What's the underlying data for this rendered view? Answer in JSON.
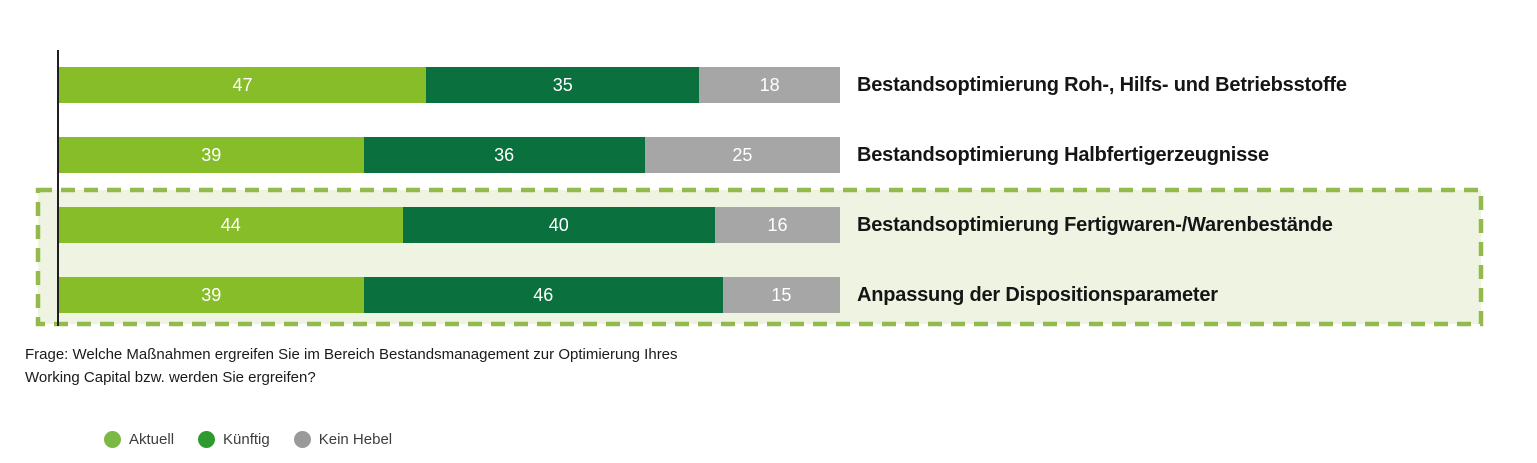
{
  "chart_data": {
    "type": "bar",
    "orientation": "horizontal-stacked",
    "title": "",
    "xlabel": "",
    "ylabel": "",
    "xlim": [
      0,
      100
    ],
    "grid": false,
    "categories": [
      "Bestandsoptimierung Roh-, Hilfs- und Betriebsstoffe",
      "Bestandsoptimierung Halbfertigerzeugnisse",
      "Bestandsoptimierung Fertigwaren-/Warenbestände",
      "Anpassung der Dispositionsparameter"
    ],
    "series": [
      {
        "key": "aktuell",
        "name": "Aktuell",
        "color": "#86bd28",
        "values": [
          47,
          39,
          44,
          39
        ]
      },
      {
        "key": "kuenftig",
        "name": "Künftig",
        "color": "#0a703d",
        "values": [
          35,
          36,
          40,
          46
        ]
      },
      {
        "key": "kein-hebel",
        "name": "Kein Hebel",
        "color": "#a6a6a6",
        "values": [
          18,
          25,
          16,
          15
        ]
      }
    ],
    "value_label_color": "#ffffff",
    "highlight": {
      "description": "dashed box around bottom two categories",
      "rows": [
        2,
        3
      ],
      "fill": "#eef3e2",
      "border_color": "#93ba4c",
      "border_style": "dashed"
    },
    "legend_position": "bottom-left"
  },
  "legend": {
    "items": [
      {
        "label": "Aktuell",
        "color": "#7cb944"
      },
      {
        "label": "Künftig",
        "color": "#2f9a2f"
      },
      {
        "label": "Kein Hebel",
        "color": "#9a9a9a"
      }
    ]
  },
  "footnote": {
    "line1": "Frage: Welche Maßnahmen ergreifen Sie im Bereich Bestandsmanagement zur Optimierung Ihres",
    "line2": "Working Capital bzw. werden Sie ergreifen?"
  }
}
